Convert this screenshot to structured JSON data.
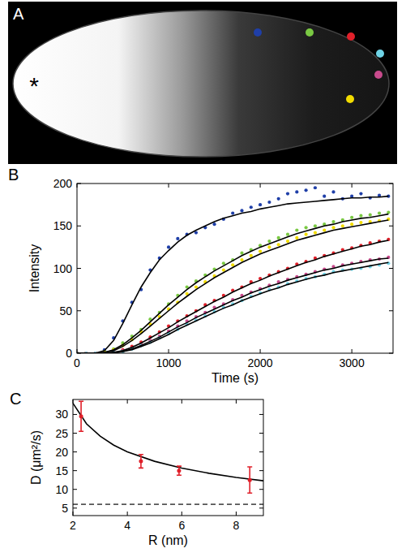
{
  "chart_data": [
    {
      "type": "image",
      "title": "A",
      "annotations": [
        "*"
      ],
      "colors": [
        "#1f3fa8",
        "#7ac943",
        "#e0202a",
        "#6fd3e6",
        "#c84a8c",
        "#f2dc00"
      ]
    },
    {
      "type": "scatter",
      "title": "B",
      "x_label": "Time (s)",
      "y_label": "Intensity",
      "x": [
        0,
        100,
        200,
        300,
        400,
        500,
        600,
        700,
        800,
        900,
        1000,
        1100,
        1200,
        1300,
        1400,
        1500,
        1600,
        1700,
        1800,
        1900,
        2000,
        2100,
        2200,
        2300,
        2400,
        2500,
        2600,
        2700,
        2800,
        2900,
        3000,
        3100,
        3200,
        3300,
        3400
      ],
      "xlim": [
        0,
        3450
      ],
      "xticks": [
        0,
        1000,
        2000,
        3000
      ],
      "ylim": [
        0,
        200
      ],
      "yticks": [
        0,
        50,
        100,
        150,
        200
      ],
      "series": [
        {
          "type": "scatter",
          "marker": "o",
          "color": "#1f3fa8",
          "values": [
            0,
            0,
            0,
            4,
            18,
            38,
            60,
            75,
            98,
            112,
            125,
            135,
            140,
            142,
            148,
            152,
            158,
            165,
            168,
            172,
            175,
            178,
            182,
            188,
            190,
            192,
            195,
            185,
            190,
            182,
            185,
            188,
            183,
            186,
            185
          ]
        },
        {
          "type": "scatter",
          "marker": "o",
          "color": "#7ac943",
          "values": [
            0,
            0,
            0,
            2,
            5,
            12,
            20,
            28,
            40,
            48,
            58,
            68,
            78,
            85,
            92,
            99,
            106,
            110,
            118,
            122,
            127,
            132,
            136,
            140,
            145,
            148,
            150,
            152,
            155,
            157,
            160,
            162,
            163,
            165,
            166
          ]
        },
        {
          "type": "scatter",
          "marker": "o",
          "color": "#f2dc00",
          "values": [
            0,
            0,
            0,
            1,
            4,
            9,
            16,
            25,
            34,
            43,
            52,
            60,
            70,
            78,
            84,
            91,
            98,
            104,
            110,
            115,
            120,
            125,
            128,
            132,
            136,
            140,
            142,
            145,
            148,
            150,
            152,
            154,
            155,
            156,
            158
          ]
        },
        {
          "type": "scatter",
          "marker": "o",
          "color": "#e0202a",
          "values": [
            0,
            0,
            0,
            0,
            2,
            4,
            8,
            13,
            19,
            25,
            32,
            38,
            44,
            50,
            57,
            62,
            68,
            74,
            78,
            84,
            88,
            92,
            96,
            100,
            105,
            108,
            112,
            115,
            118,
            122,
            124,
            127,
            130,
            132,
            134
          ]
        },
        {
          "type": "scatter",
          "marker": "o",
          "color": "#c84a8c",
          "values": [
            0,
            0,
            0,
            0,
            1,
            3,
            6,
            10,
            15,
            20,
            26,
            32,
            38,
            43,
            48,
            54,
            58,
            63,
            68,
            72,
            76,
            80,
            84,
            87,
            90,
            93,
            96,
            99,
            102,
            104,
            106,
            108,
            110,
            111,
            113
          ]
        },
        {
          "type": "scatter",
          "marker": "o",
          "color": "#6fd3e6",
          "values": [
            0,
            0,
            0,
            0,
            1,
            2,
            5,
            9,
            13,
            18,
            23,
            28,
            34,
            39,
            44,
            49,
            54,
            58,
            62,
            67,
            71,
            75,
            78,
            82,
            85,
            88,
            90,
            93,
            96,
            98,
            99,
            100,
            102,
            104,
            106
          ]
        },
        {
          "type": "line",
          "line_style": "solid",
          "color": "#000000",
          "values": [
            0,
            0,
            0,
            3,
            15,
            35,
            57,
            78,
            95,
            110,
            121,
            131,
            139,
            145,
            150,
            155,
            159,
            162,
            165,
            167,
            170,
            172,
            174,
            176,
            177,
            178,
            179,
            180,
            181,
            182,
            183,
            183,
            184,
            184,
            185
          ]
        },
        {
          "type": "line",
          "line_style": "solid",
          "color": "#000000",
          "values": [
            0,
            0,
            0,
            1,
            4,
            10,
            18,
            27,
            37,
            47,
            57,
            66,
            75,
            83,
            90,
            97,
            103,
            109,
            115,
            120,
            125,
            129,
            133,
            137,
            141,
            144,
            147,
            150,
            152,
            155,
            157,
            159,
            160,
            162,
            164
          ]
        },
        {
          "type": "line",
          "line_style": "solid",
          "color": "#000000",
          "values": [
            0,
            0,
            0,
            1,
            3,
            8,
            15,
            23,
            32,
            41,
            50,
            59,
            67,
            75,
            82,
            89,
            95,
            101,
            107,
            112,
            117,
            121,
            125,
            129,
            133,
            136,
            139,
            142,
            145,
            147,
            149,
            151,
            153,
            155,
            157
          ]
        },
        {
          "type": "line",
          "line_style": "solid",
          "color": "#000000",
          "values": [
            0,
            0,
            0,
            0,
            1,
            3,
            7,
            12,
            18,
            24,
            30,
            37,
            43,
            49,
            55,
            61,
            66,
            72,
            77,
            82,
            86,
            91,
            95,
            99,
            103,
            107,
            110,
            114,
            117,
            120,
            123,
            126,
            128,
            131,
            133
          ]
        },
        {
          "type": "line",
          "line_style": "solid",
          "color": "#000000",
          "values": [
            0,
            0,
            0,
            0,
            1,
            2,
            5,
            9,
            14,
            19,
            25,
            31,
            36,
            42,
            47,
            52,
            57,
            62,
            66,
            71,
            75,
            79,
            82,
            86,
            89,
            92,
            95,
            98,
            100,
            103,
            105,
            107,
            109,
            111,
            112
          ]
        },
        {
          "type": "line",
          "line_style": "solid",
          "color": "#000000",
          "values": [
            0,
            0,
            0,
            0,
            0,
            2,
            4,
            8,
            12,
            17,
            22,
            28,
            33,
            38,
            43,
            48,
            53,
            57,
            62,
            66,
            70,
            74,
            77,
            81,
            84,
            87,
            90,
            92,
            95,
            97,
            99,
            101,
            103,
            105,
            107
          ]
        }
      ]
    },
    {
      "type": "scatter",
      "title": "C",
      "x_label": "R (nm)",
      "y_label": "D (μm²/s)",
      "xlim": [
        2,
        9
      ],
      "xticks": [
        2,
        4,
        6,
        8
      ],
      "ylim": [
        3,
        34
      ],
      "yticks": [
        5,
        10,
        15,
        20,
        25,
        30
      ],
      "series": [
        {
          "type": "line",
          "line_style": "solid",
          "color": "#000000",
          "x": [
            2,
            2.5,
            3,
            3.5,
            4,
            5,
            6,
            7,
            8,
            9
          ],
          "values": [
            33,
            27.5,
            24.2,
            21.8,
            20,
            17.5,
            15.7,
            14.3,
            13.2,
            12.3
          ]
        },
        {
          "type": "line",
          "line_style": "dashed",
          "color": "#555555",
          "x": [
            2,
            9
          ],
          "values": [
            6,
            6
          ]
        },
        {
          "type": "scatter",
          "marker": "o",
          "color": "#e0202a",
          "x": [
            2.3,
            4.5,
            5.9,
            8.5
          ],
          "values": [
            29.5,
            17.5,
            15,
            12.5
          ],
          "errors": [
            4,
            1.8,
            1.2,
            3.5
          ]
        }
      ]
    }
  ]
}
